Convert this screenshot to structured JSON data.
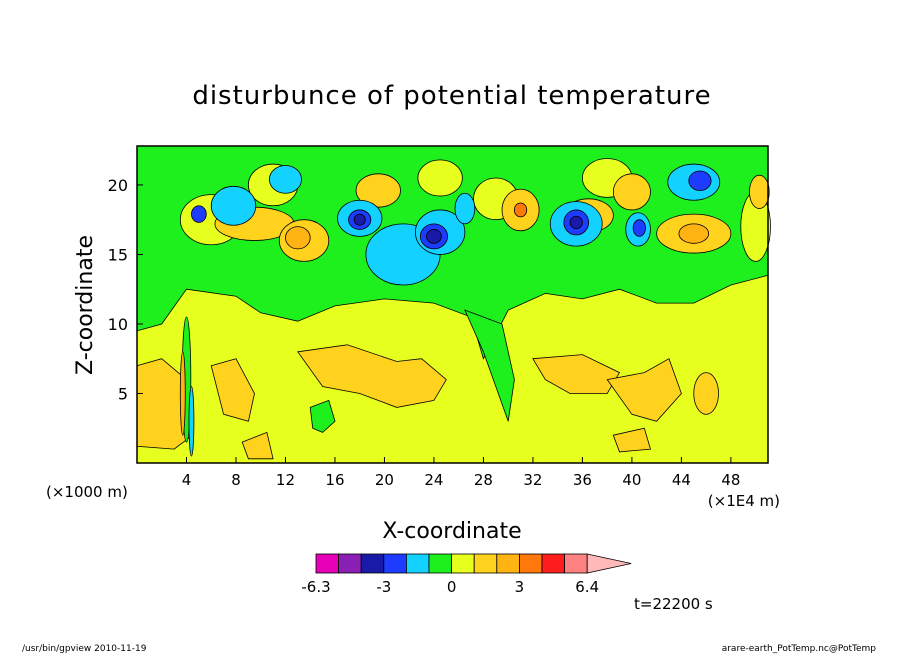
{
  "chart_data": {
    "type": "heatmap",
    "title": "disturbunce of potential temperature",
    "xlabel": "X-coordinate",
    "ylabel": "Z-coordinate",
    "x_unit_left": "(×1000 m)",
    "x_unit_right": "(×1E4 m)",
    "xlim": [
      0,
      51
    ],
    "ylim": [
      0,
      22.8
    ],
    "x_ticks": [
      "4",
      "8",
      "12",
      "16",
      "20",
      "24",
      "28",
      "32",
      "36",
      "40",
      "44",
      "48"
    ],
    "y_ticks": [
      "5",
      "10",
      "15",
      "20"
    ],
    "colorbar": {
      "colors": [
        "#e600b8",
        "#8a1fb5",
        "#1a1aa8",
        "#1e3cff",
        "#14d2ff",
        "#1ef01e",
        "#e6ff1e",
        "#ffd21e",
        "#ffb414",
        "#ff780a",
        "#ff1e1e",
        "#ff8282",
        "#ffb9b9"
      ],
      "labels": [
        "-6.3",
        "-3",
        "0",
        "3",
        "6.4"
      ]
    },
    "time_label": "t=22200 s"
  },
  "footer": {
    "left": "/usr/bin/gpview   2010-11-19",
    "right": "arare-earth_PotTemp.nc@PotTemp"
  }
}
